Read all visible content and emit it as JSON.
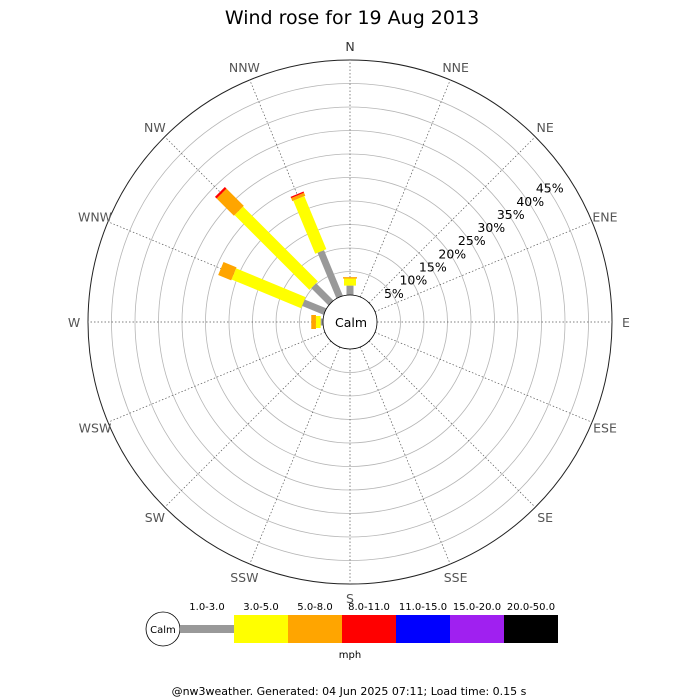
{
  "chart_data": {
    "type": "wind-rose",
    "title": "Wind rose for 19 Aug 2013",
    "directions": [
      "N",
      "NNE",
      "NE",
      "ENE",
      "E",
      "ESE",
      "SE",
      "SSE",
      "S",
      "SSW",
      "SW",
      "WSW",
      "W",
      "WNW",
      "NW",
      "NNW"
    ],
    "ring_labels": [
      "5%",
      "10%",
      "15%",
      "20%",
      "25%",
      "30%",
      "35%",
      "40%",
      "45%"
    ],
    "radial_max": 50,
    "calm_label": "Calm",
    "bins": [
      {
        "label": "1.0-3.0",
        "color": "#999999"
      },
      {
        "label": "3.0-5.0",
        "color": "#ffff00"
      },
      {
        "label": "5.0-8.0",
        "color": "#ffa500"
      },
      {
        "label": "8.0-11.0",
        "color": "#ff0000"
      },
      {
        "label": "11.0-15.0",
        "color": "#0000ff"
      },
      {
        "label": "15.0-20.0",
        "color": "#a020f0"
      },
      {
        "label": "20.0-50.0",
        "color": "#000000"
      }
    ],
    "unit": "mph",
    "series": [
      {
        "direction": "N",
        "values": [
          2.0,
          1.5,
          0.3,
          0,
          0,
          0,
          0
        ]
      },
      {
        "direction": "NNW",
        "values": [
          10.5,
          12.2,
          0.7,
          0.3,
          0,
          0,
          0
        ]
      },
      {
        "direction": "NW",
        "values": [
          5.2,
          22.5,
          5.2,
          0.5,
          0,
          0,
          0
        ]
      },
      {
        "direction": "WNW",
        "values": [
          5.0,
          16.0,
          3.0,
          0,
          0,
          0,
          0
        ]
      },
      {
        "direction": "W",
        "values": [
          0.5,
          1.0,
          1.0,
          0,
          0,
          0,
          0
        ]
      }
    ]
  },
  "footer": "@nw3weather. Generated: 04 Jun 2025 07:11; Load time: 0.15 s"
}
